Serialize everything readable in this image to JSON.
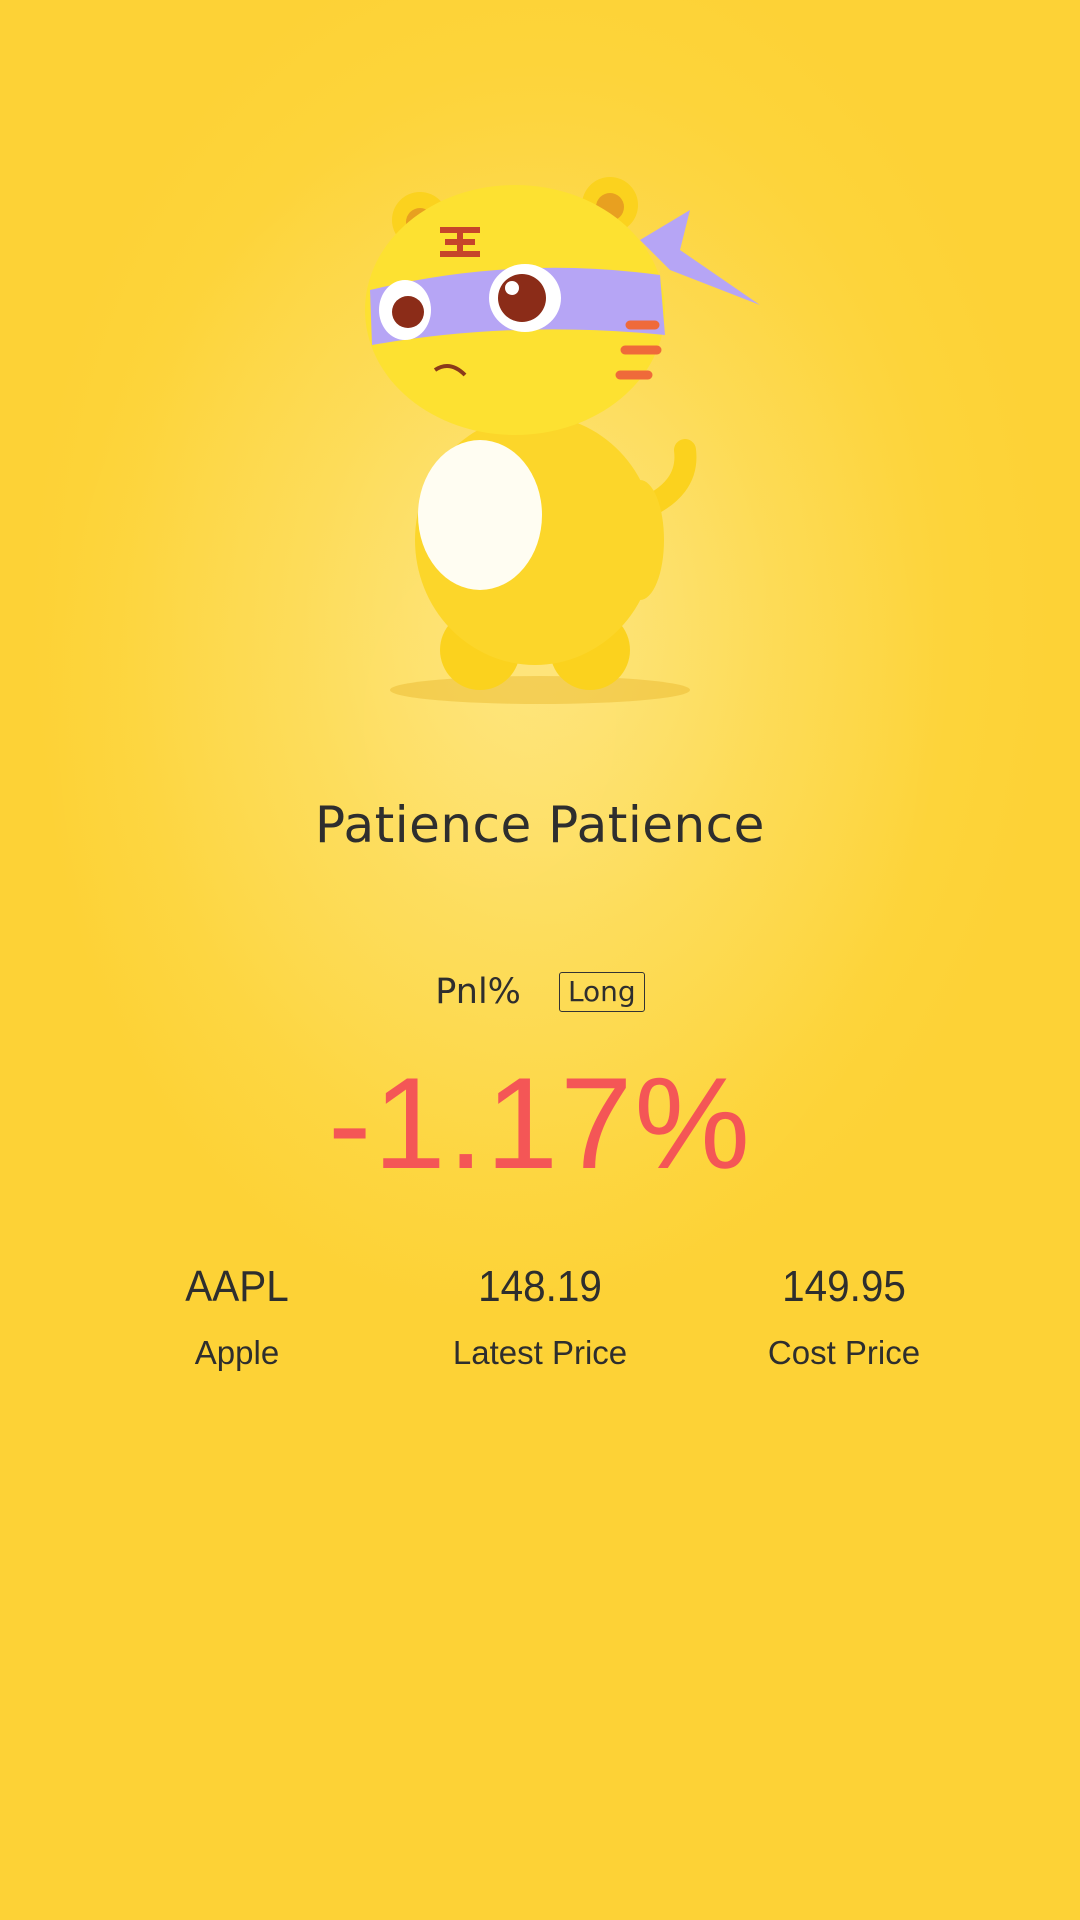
{
  "title": "Patience Patience",
  "pnl": {
    "label": "Pnl%",
    "position_badge": "Long",
    "value": "-1.17%"
  },
  "stats": [
    {
      "value": "AAPL",
      "label": "Apple"
    },
    {
      "value": "148.19",
      "label": "Latest Price"
    },
    {
      "value": "149.95",
      "label": "Cost Price"
    }
  ],
  "colors": {
    "background": "#fdd43a",
    "loss": "#f45656",
    "text": "#2e2e2e"
  },
  "mascot": {
    "icon": "tiger-mascot-with-purple-mask"
  }
}
